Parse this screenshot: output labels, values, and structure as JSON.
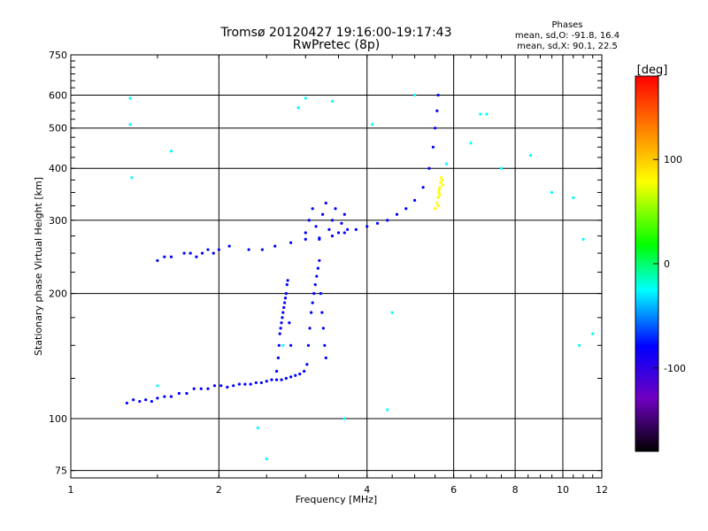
{
  "chart_data": {
    "type": "scatter",
    "title": "Tromsø 20120427 19:16:00-19:17:43",
    "subtitle": "RwPretec (8p)",
    "xlabel": "Frequency [MHz]",
    "ylabel": "Stationary phase Virtual Height [km]",
    "x_scale": "log",
    "y_scale": "log",
    "xlim": [
      1,
      12
    ],
    "ylim": [
      72,
      750
    ],
    "xticks": [
      1,
      2,
      4,
      6,
      8,
      10,
      12
    ],
    "xtick_labels": [
      "1",
      "2",
      "4",
      "6",
      "8",
      "10",
      "12"
    ],
    "yticks": [
      75,
      100,
      200,
      300,
      400,
      500,
      600,
      750
    ],
    "ytick_labels": [
      "75",
      "100",
      "200",
      "300",
      "400",
      "500",
      "600",
      "750"
    ],
    "grid": true,
    "phases_panel": {
      "heading": "Phases",
      "lines": [
        "mean, sd,O: -91.8, 16.4",
        "mean, sd,X:  90.1, 22.5"
      ]
    },
    "colorbar": {
      "label": "[deg]",
      "range": [
        -180,
        180
      ],
      "ticks": [
        100,
        0,
        -100
      ],
      "tick_labels": [
        "100",
        "0",
        "-100"
      ],
      "colors": [
        "#ff0000",
        "#ff8000",
        "#ffff00",
        "#00ff00",
        "#00ffff",
        "#0000ff",
        "#7000c0",
        "#000000"
      ]
    },
    "series": [
      {
        "trace": "O-mode low",
        "phase": -95,
        "x": [
          1.3,
          1.34,
          1.38,
          1.42,
          1.46,
          1.5,
          1.55,
          1.6,
          1.66,
          1.72,
          1.78,
          1.84,
          1.9,
          1.96,
          2.02,
          2.08,
          2.14,
          2.2,
          2.26,
          2.32,
          2.38,
          2.44,
          2.5,
          2.56,
          2.62,
          2.68,
          2.74,
          2.8,
          2.86,
          2.92,
          2.98
        ],
        "y": [
          109,
          111,
          110,
          111,
          110,
          112,
          113,
          113,
          115,
          115,
          118,
          118,
          118,
          120,
          120,
          119,
          120,
          121,
          121,
          121,
          122,
          122,
          123,
          124,
          124,
          124,
          125,
          126,
          127,
          128,
          130
        ]
      },
      {
        "trace": "O-mode low cusp near 2.7 MHz",
        "phase": -80,
        "x": [
          2.62,
          2.64,
          2.65,
          2.66,
          2.67,
          2.68,
          2.69,
          2.7,
          2.71,
          2.72,
          2.73,
          2.74,
          2.75,
          2.76,
          2.78,
          2.8
        ],
        "y": [
          130,
          140,
          150,
          160,
          165,
          170,
          175,
          180,
          185,
          190,
          195,
          200,
          210,
          215,
          170,
          150
        ]
      },
      {
        "trace": "O-mode low cusp near 3.1 MHz",
        "phase": -95,
        "x": [
          3.02,
          3.04,
          3.06,
          3.08,
          3.1,
          3.12,
          3.14,
          3.16,
          3.18,
          3.2,
          3.22,
          3.24,
          3.26,
          3.28,
          3.3
        ],
        "y": [
          135,
          150,
          165,
          180,
          190,
          200,
          210,
          220,
          230,
          240,
          200,
          180,
          165,
          150,
          140
        ]
      },
      {
        "trace": "O-mode high",
        "phase": -95,
        "x": [
          1.5,
          1.55,
          1.6,
          1.7,
          1.75,
          1.8,
          1.85,
          1.9,
          1.95,
          2.0,
          2.1,
          2.3,
          2.45,
          2.6,
          2.8,
          3.0,
          3.2,
          3.4,
          3.6,
          3.8,
          4.0,
          4.2,
          4.4,
          4.6,
          4.8,
          5.0,
          5.2,
          5.35,
          5.45,
          5.5,
          5.55,
          5.58
        ],
        "y": [
          240,
          245,
          245,
          250,
          250,
          245,
          250,
          255,
          250,
          255,
          260,
          255,
          255,
          260,
          265,
          270,
          272,
          275,
          280,
          285,
          290,
          295,
          300,
          310,
          320,
          335,
          360,
          400,
          450,
          500,
          550,
          600
        ]
      },
      {
        "trace": "O-mode spread near 3.1-3.6 MHz",
        "phase": -100,
        "x": [
          3.0,
          3.05,
          3.1,
          3.15,
          3.2,
          3.25,
          3.3,
          3.35,
          3.4,
          3.45,
          3.5,
          3.55,
          3.6,
          3.65
        ],
        "y": [
          280,
          300,
          320,
          290,
          270,
          310,
          330,
          285,
          300,
          320,
          280,
          295,
          310,
          285
        ]
      },
      {
        "trace": "X-mode cusp",
        "phase": 90,
        "x": [
          5.5,
          5.55,
          5.58,
          5.6,
          5.62,
          5.64,
          5.66,
          5.68,
          5.7,
          5.6,
          5.62,
          5.58
        ],
        "y": [
          320,
          330,
          340,
          350,
          360,
          370,
          380,
          375,
          365,
          355,
          345,
          325
        ]
      },
      {
        "trace": "scattered echoes",
        "phase": 0,
        "x": [
          1.32,
          1.32,
          1.33,
          1.5,
          1.6,
          2.4,
          2.5,
          2.7,
          3.0,
          3.4,
          4.1,
          4.4,
          5.0,
          6.5,
          7.0,
          7.5,
          8.6,
          10.5,
          11.0,
          11.5,
          2.9,
          3.6,
          4.5,
          5.8,
          6.8,
          9.5,
          10.8
        ],
        "y": [
          590,
          510,
          380,
          120,
          440,
          95,
          80,
          150,
          590,
          580,
          510,
          105,
          600,
          460,
          540,
          400,
          430,
          340,
          270,
          160,
          560,
          100,
          180,
          410,
          540,
          350,
          150
        ]
      }
    ]
  }
}
